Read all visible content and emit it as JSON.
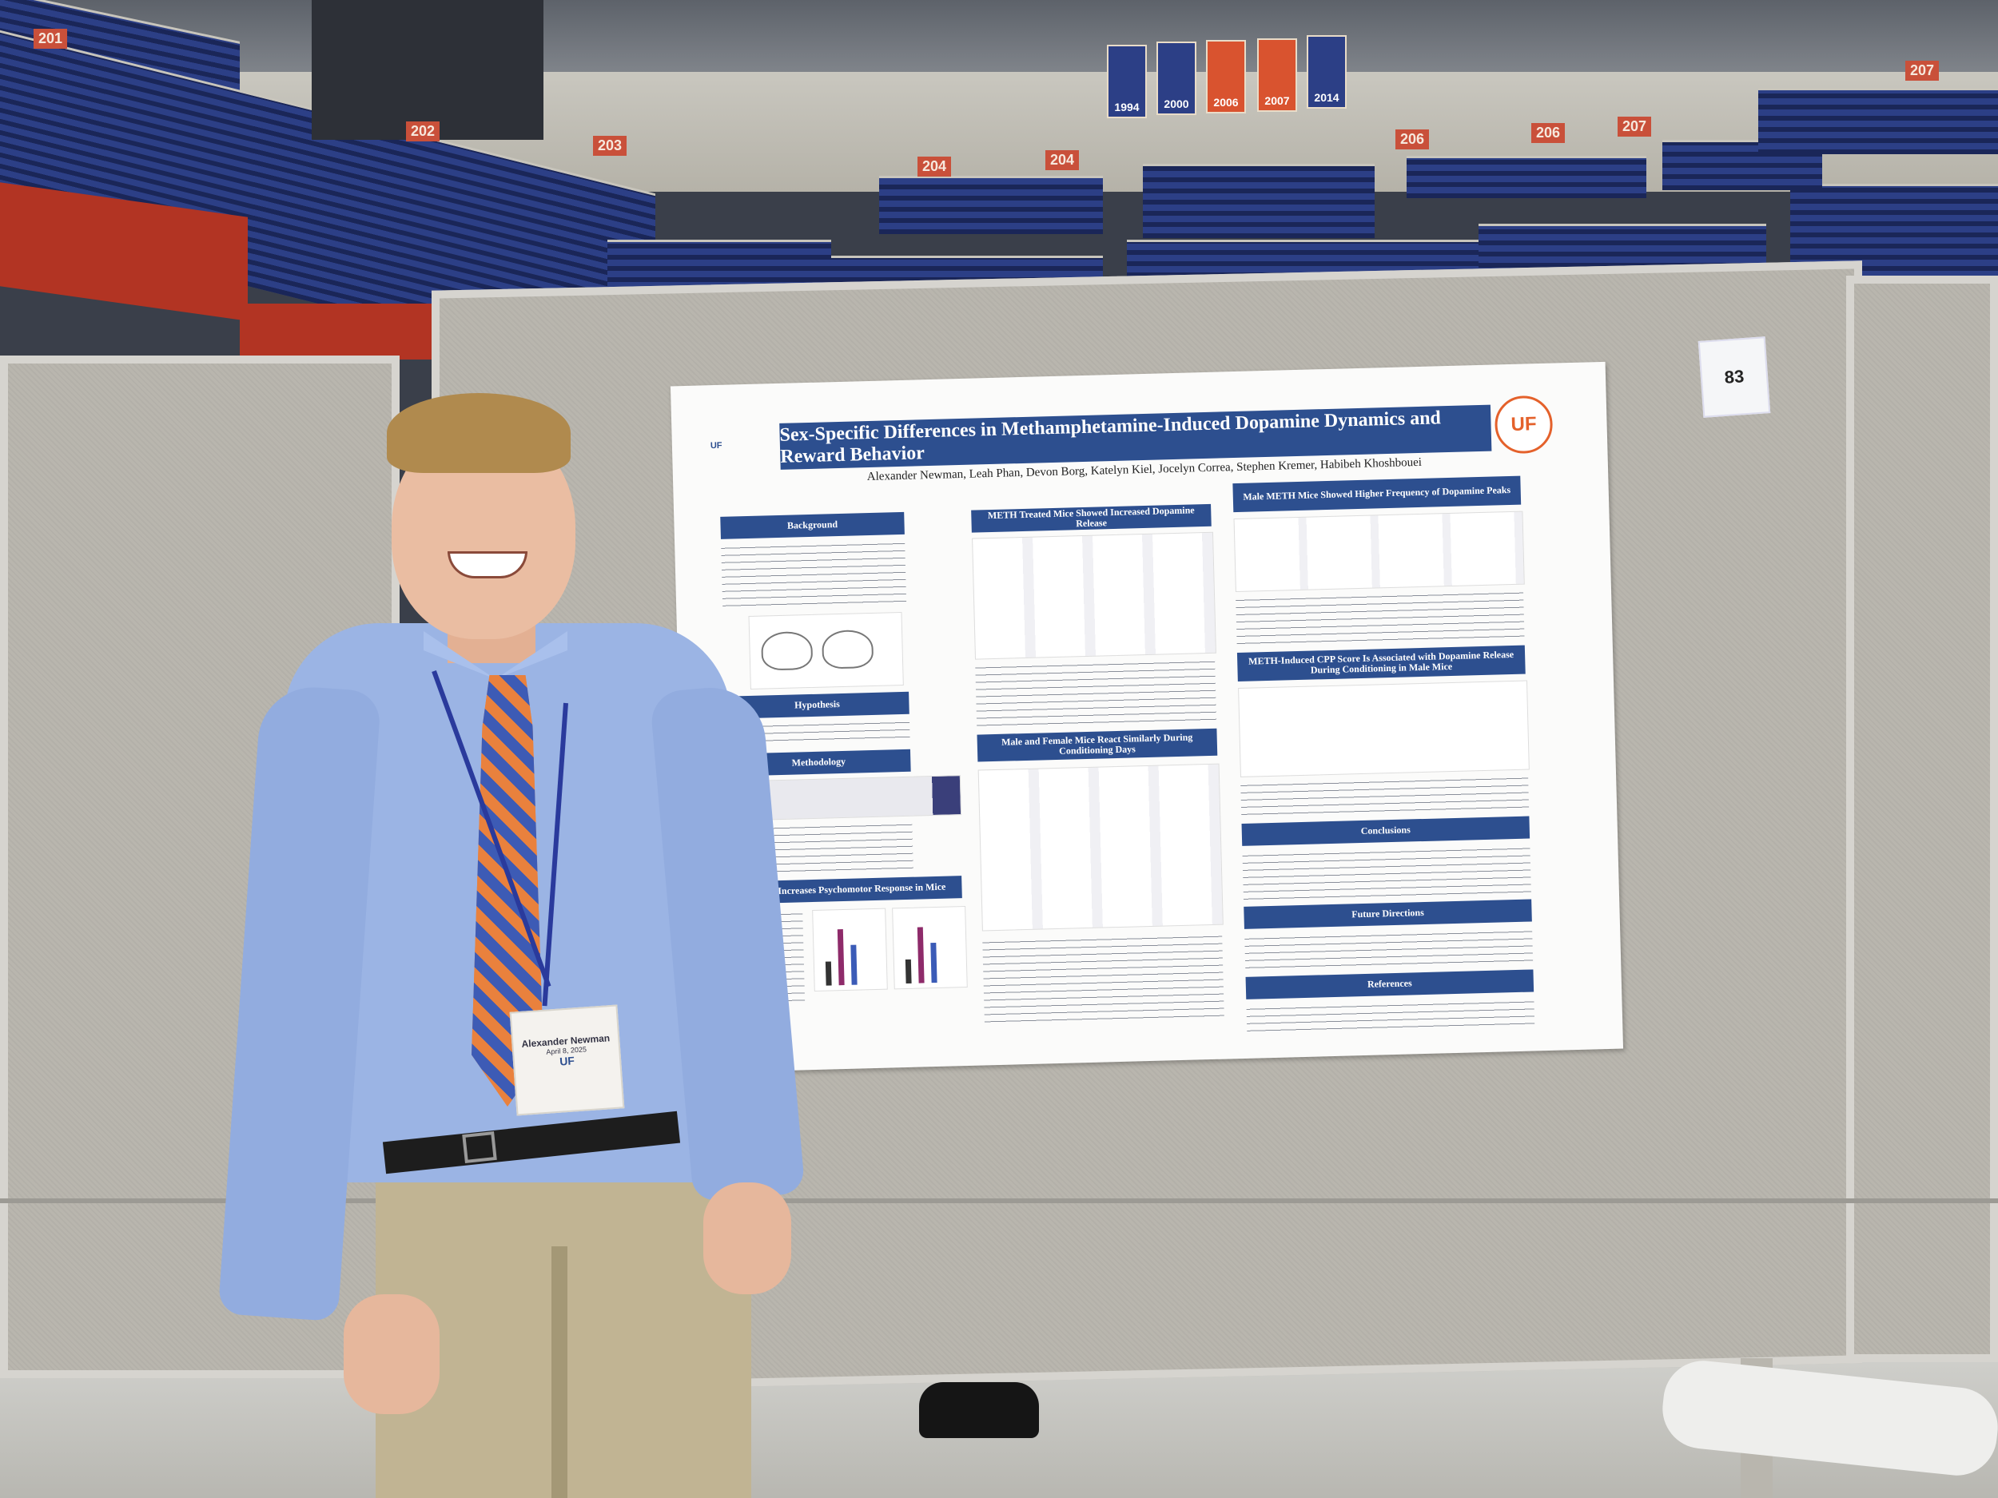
{
  "poster": {
    "title": "Sex-Specific Differences in Methamphetamine-Induced Dopamine Dynamics and Reward Behavior",
    "authors": "Alexander Newman, Leah Phan, Devon Borg, Katelyn Kiel, Jocelyn Correa, Stephen Kremer, Habibeh Khoshbouei",
    "logo_text": "UF",
    "logo_left_text": "UF",
    "board_number": "83",
    "sections": {
      "background": "Background",
      "hypothesis": "Hypothesis",
      "methodology": "Methodology",
      "psychomotor": "METH Increases Psychomotor Response in Mice",
      "dopamine_release": "METH Treated Mice Showed Increased Dopamine Release",
      "conditioning": "Male and Female Mice React Similarly During Conditioning Days",
      "peaks": "Male METH Mice Showed Higher Frequency of Dopamine Peaks",
      "cpp": "METH-Induced CPP Score Is Associated with Dopamine Release During Conditioning in Male Mice",
      "conclusions": "Conclusions",
      "future": "Future Directions",
      "references": "References"
    }
  },
  "arena": {
    "section_signs": [
      "201",
      "202",
      "203",
      "204",
      "204",
      "206",
      "206",
      "207",
      "207"
    ],
    "banner_years": [
      "1994",
      "2000",
      "2006",
      "2007",
      "2014"
    ],
    "banner_colors": [
      "#2c3f86",
      "#2c3f86",
      "#d9532f",
      "#d9532f",
      "#2c3f86"
    ]
  },
  "badge": {
    "name": "Alexander Newman",
    "date": "April 8, 2025",
    "org": "UF"
  }
}
